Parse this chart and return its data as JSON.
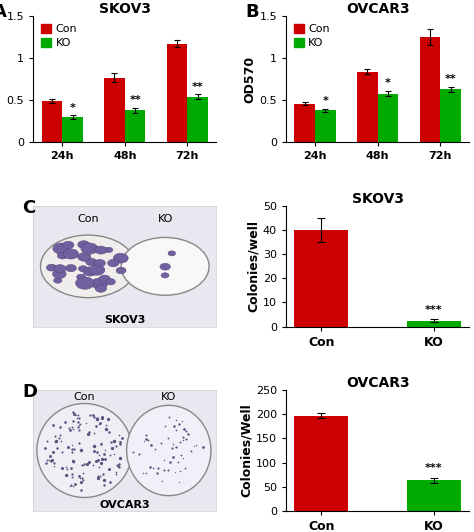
{
  "panel_A": {
    "title": "SKOV3",
    "ylabel": "OD570",
    "categories": [
      "24h",
      "48h",
      "72h"
    ],
    "con_values": [
      0.49,
      0.77,
      1.17
    ],
    "ko_values": [
      0.3,
      0.38,
      0.54
    ],
    "con_errors": [
      0.02,
      0.05,
      0.04
    ],
    "ko_errors": [
      0.02,
      0.03,
      0.03
    ],
    "ylim": [
      0,
      1.5
    ],
    "yticks": [
      0,
      0.5,
      1.0,
      1.5
    ],
    "ytick_labels": [
      "0",
      "0.5",
      "1",
      "1.5"
    ],
    "significance": [
      "*",
      "**",
      "**"
    ],
    "con_color": "#cc0000",
    "ko_color": "#00aa00"
  },
  "panel_B": {
    "title": "OVCAR3",
    "ylabel": "OD570",
    "categories": [
      "24h",
      "48h",
      "72h"
    ],
    "con_values": [
      0.46,
      0.84,
      1.25
    ],
    "ko_values": [
      0.38,
      0.58,
      0.63
    ],
    "con_errors": [
      0.02,
      0.03,
      0.09
    ],
    "ko_errors": [
      0.02,
      0.03,
      0.03
    ],
    "ylim": [
      0,
      1.5
    ],
    "yticks": [
      0,
      0.5,
      1.0,
      1.5
    ],
    "ytick_labels": [
      "0",
      "0.5",
      "1",
      "1.5"
    ],
    "significance": [
      "*",
      "*",
      "**"
    ],
    "con_color": "#cc0000",
    "ko_color": "#00aa00"
  },
  "panel_C_bar": {
    "title": "SKOV3",
    "ylabel": "Colonies/well",
    "categories": [
      "Con",
      "KO"
    ],
    "values": [
      40.0,
      2.5
    ],
    "errors": [
      5.0,
      0.5
    ],
    "ylim": [
      0,
      50
    ],
    "yticks": [
      0,
      10,
      20,
      30,
      40,
      50
    ],
    "significance": [
      "",
      "***"
    ],
    "colors": [
      "#cc0000",
      "#00aa00"
    ]
  },
  "panel_D_bar": {
    "title": "OVCAR3",
    "ylabel": "Colonies/Well",
    "categories": [
      "Con",
      "KO"
    ],
    "values": [
      197.0,
      63.0
    ],
    "errors": [
      5.0,
      5.0
    ],
    "ylim": [
      0,
      250
    ],
    "yticks": [
      0,
      50,
      100,
      150,
      200,
      250
    ],
    "significance": [
      "",
      "***"
    ],
    "colors": [
      "#cc0000",
      "#00aa00"
    ]
  },
  "legend_labels": [
    "Con",
    "KO"
  ],
  "legend_colors": [
    "#cc0000",
    "#00aa00"
  ],
  "label_fontsize": 9,
  "title_fontsize": 10,
  "tick_fontsize": 8,
  "sig_fontsize": 8,
  "panel_label_fontsize": 13
}
